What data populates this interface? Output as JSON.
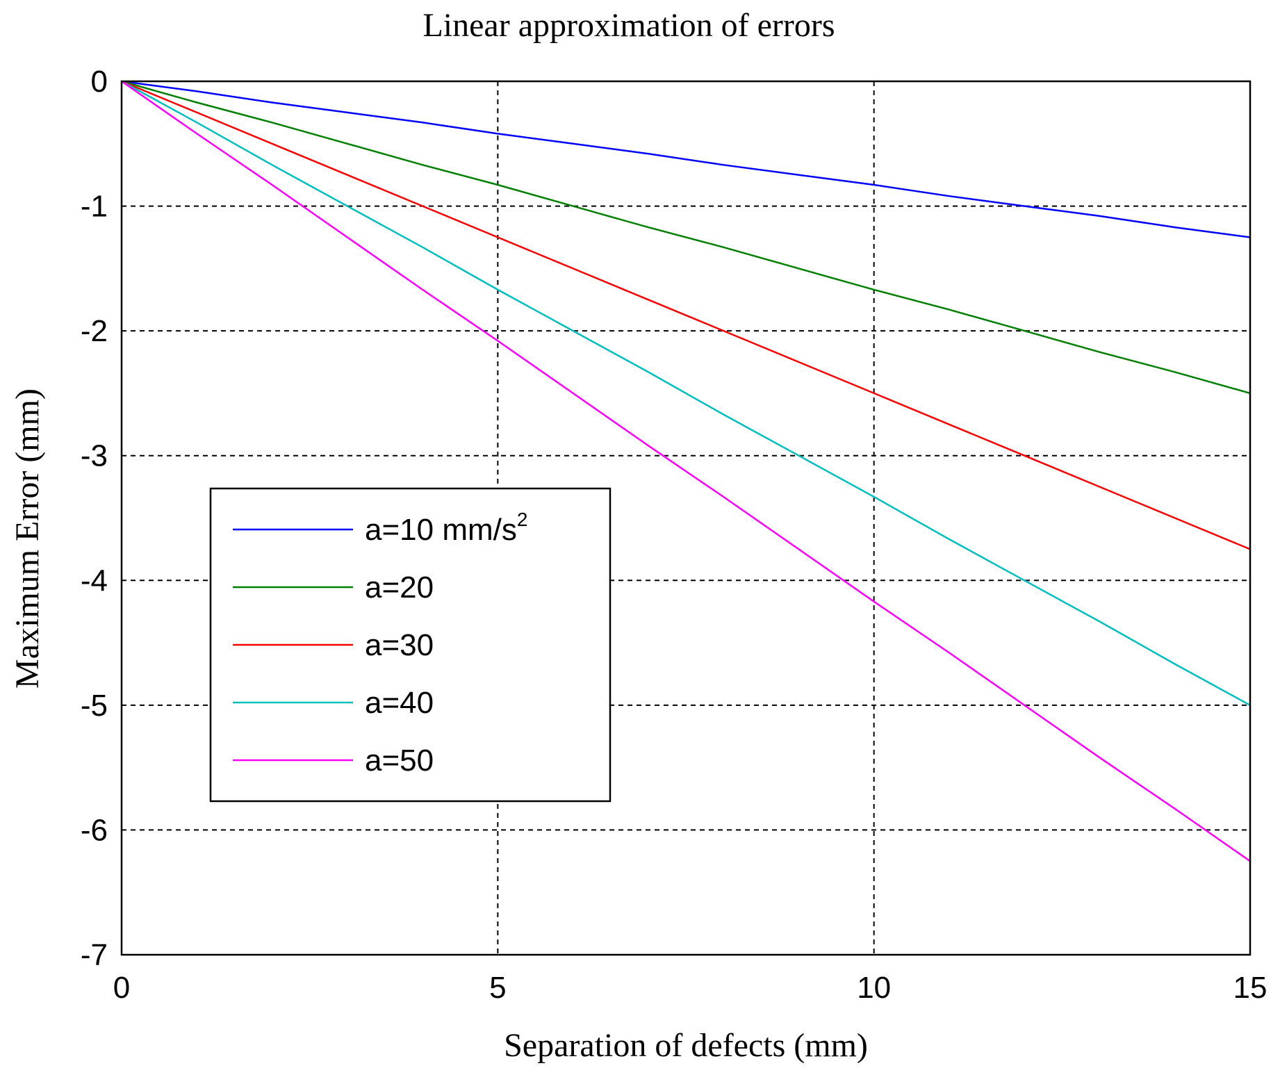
{
  "chart_data": {
    "type": "line",
    "title": "Linear approximation  of errors",
    "xlabel": "Separation of  defects (mm)",
    "ylabel": "Maximum Error (mm)",
    "xlim": [
      0,
      15
    ],
    "ylim": [
      -7,
      0
    ],
    "xticks": [
      0,
      5,
      10,
      15
    ],
    "yticks": [
      0,
      -1,
      -2,
      -3,
      -4,
      -5,
      -6,
      -7
    ],
    "xtick_labels": [
      "0",
      "5",
      "10",
      "15"
    ],
    "ytick_labels": [
      "0",
      "-1",
      "-2",
      "-3",
      "-4",
      "-5",
      "-6",
      "-7"
    ],
    "grid": true,
    "legend_position": "lower-left",
    "x": [
      0,
      1,
      2,
      3,
      4,
      5,
      6,
      7,
      8,
      9,
      10,
      11,
      12,
      13,
      14,
      15
    ],
    "series": [
      {
        "name": "a=10 mm/s",
        "name_sup": "2",
        "color": "#0000ff",
        "values": [
          0,
          -0.08,
          -0.17,
          -0.25,
          -0.33,
          -0.42,
          -0.5,
          -0.58,
          -0.67,
          -0.75,
          -0.83,
          -0.92,
          -1.0,
          -1.08,
          -1.17,
          -1.25
        ]
      },
      {
        "name": "a=20",
        "color": "#008000",
        "values": [
          0,
          -0.17,
          -0.33,
          -0.5,
          -0.67,
          -0.83,
          -1.0,
          -1.17,
          -1.33,
          -1.5,
          -1.67,
          -1.83,
          -2.0,
          -2.17,
          -2.33,
          -2.5
        ]
      },
      {
        "name": "a=30",
        "color": "#ff0000",
        "values": [
          0,
          -0.25,
          -0.5,
          -0.75,
          -1.0,
          -1.25,
          -1.5,
          -1.75,
          -2.0,
          -2.25,
          -2.5,
          -2.75,
          -3.0,
          -3.25,
          -3.5,
          -3.75
        ]
      },
      {
        "name": "a=40",
        "color": "#00bfbf",
        "values": [
          0,
          -0.33,
          -0.67,
          -1.0,
          -1.33,
          -1.67,
          -2.0,
          -2.33,
          -2.67,
          -3.0,
          -3.33,
          -3.67,
          -4.0,
          -4.33,
          -4.67,
          -5.0
        ]
      },
      {
        "name": "a=50",
        "color": "#ff00ff",
        "values": [
          0,
          -0.42,
          -0.83,
          -1.25,
          -1.67,
          -2.08,
          -2.5,
          -2.92,
          -3.33,
          -3.75,
          -4.17,
          -4.58,
          -5.0,
          -5.42,
          -5.83,
          -6.25
        ]
      }
    ]
  }
}
